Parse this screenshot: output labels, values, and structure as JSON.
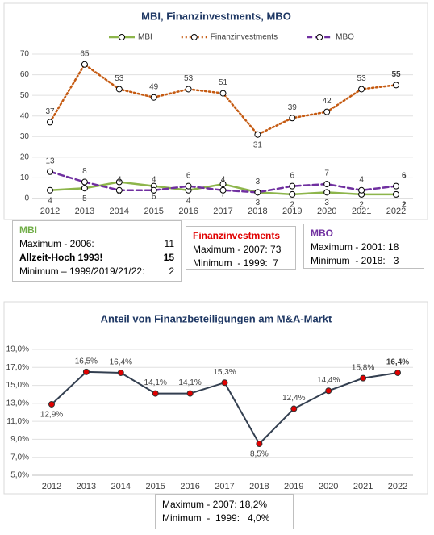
{
  "chart_data": [
    {
      "type": "line",
      "title": "MBI, Finanzinvestments, MBO",
      "categories": [
        "2012",
        "2013",
        "2014",
        "2015",
        "2016",
        "2017",
        "2018",
        "2019",
        "2020",
        "2021",
        "2022"
      ],
      "series": [
        {
          "name": "MBI",
          "color": "#8db54b",
          "style": "solid",
          "values": [
            4,
            5,
            8,
            6,
            4,
            7,
            3,
            2,
            3,
            2,
            2
          ]
        },
        {
          "name": "Finanzinvestments",
          "color": "#c55a11",
          "style": "dotted",
          "values": [
            37,
            65,
            53,
            49,
            53,
            51,
            31,
            39,
            42,
            53,
            55
          ]
        },
        {
          "name": "MBO",
          "color": "#7030a0",
          "style": "dashed",
          "values": [
            13,
            8,
            4,
            4,
            6,
            4,
            3,
            6,
            7,
            4,
            6
          ]
        }
      ],
      "ylim": [
        0,
        70
      ],
      "yticks": [
        0,
        10,
        20,
        30,
        40,
        50,
        60,
        70
      ],
      "grid": true,
      "legend": "top",
      "marker_color": "#ffffff"
    },
    {
      "type": "line",
      "title": "Anteil von Finanzbeteiligungen am M&A-Markt",
      "categories": [
        "2012",
        "2013",
        "2014",
        "2015",
        "2016",
        "2017",
        "2018",
        "2019",
        "2020",
        "2021",
        "2022"
      ],
      "values": [
        12.9,
        16.5,
        16.4,
        14.1,
        14.1,
        15.3,
        8.5,
        12.4,
        14.4,
        15.8,
        16.4
      ],
      "value_labels": [
        "12,9%",
        "16,5%",
        "16,4%",
        "14,1%",
        "14,1%",
        "15,3%",
        "8,5%",
        "12,4%",
        "14,4%",
        "15,8%",
        "16,4%"
      ],
      "color": "#333f50",
      "marker_color": "#e00000",
      "ylim": [
        5,
        19
      ],
      "yticks": [
        {
          "value": 5,
          "label": "5,0%"
        },
        {
          "value": 7,
          "label": "7,0%"
        },
        {
          "value": 9,
          "label": "9,0%"
        },
        {
          "value": 11,
          "label": "11,0%"
        },
        {
          "value": 13,
          "label": "13,0%"
        },
        {
          "value": 15,
          "label": "15,0%"
        },
        {
          "value": 17,
          "label": "17,0%"
        },
        {
          "value": 19,
          "label": "19,0%"
        }
      ],
      "grid": true
    }
  ],
  "info_boxes": [
    {
      "title": "MBI",
      "color": "#70ad47",
      "rows": [
        [
          "Maximum - 2006:",
          "11"
        ],
        [
          "Allzeit-Hoch 1993!",
          "15"
        ],
        [
          "Minimum – 1999/2019/21/22:",
          "2"
        ]
      ]
    },
    {
      "title": "Finanzinvestments",
      "color": "#e00000",
      "rows": [
        [
          "Maximum - 2007: 73"
        ],
        [
          "Minimum  - 1999:  7"
        ]
      ]
    },
    {
      "title": "MBO",
      "color": "#7030a0",
      "rows": [
        [
          "Maximum - 2001: 18"
        ],
        [
          "Minimum  - 2018:   3"
        ]
      ]
    },
    {
      "rows": [
        [
          "Maximum - 2007: 18,2%"
        ],
        [
          "Minimum  -  1999:   4,0%"
        ]
      ]
    }
  ]
}
